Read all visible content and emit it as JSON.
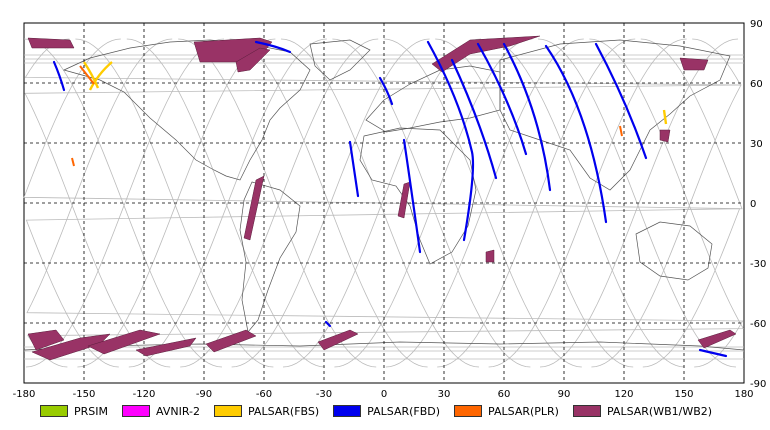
{
  "map": {
    "lon_ticks": [
      "-180",
      "-150",
      "-120",
      "-90",
      "-60",
      "-30",
      "0",
      "30",
      "60",
      "90",
      "120",
      "150",
      "180"
    ],
    "lat_ticks": [
      "90",
      "60",
      "30",
      "0",
      "-30",
      "-60",
      "-90"
    ],
    "lon_values": [
      -180,
      -150,
      -120,
      -90,
      -60,
      -30,
      0,
      30,
      60,
      90,
      120,
      150,
      180
    ],
    "lat_values": [
      90,
      60,
      30,
      0,
      -30,
      -60,
      -90
    ],
    "grid": "dashed",
    "colors": {
      "background": "#ffffff",
      "gridline": "#000000",
      "orbit": "#bbbbbb",
      "coast": "#555555"
    }
  },
  "legend": {
    "items": [
      {
        "label": "PRSIM",
        "color": "#99cc00"
      },
      {
        "label": "AVNIR-2",
        "color": "#ff00ff"
      },
      {
        "label": "PALSAR(FBS)",
        "color": "#ffcc00"
      },
      {
        "label": "PALSAR(FBD)",
        "color": "#0000ee"
      },
      {
        "label": "PALSAR(PLR)",
        "color": "#ff6600"
      },
      {
        "label": "PALSAR(WB1/WB2)",
        "color": "#993366"
      }
    ]
  }
}
